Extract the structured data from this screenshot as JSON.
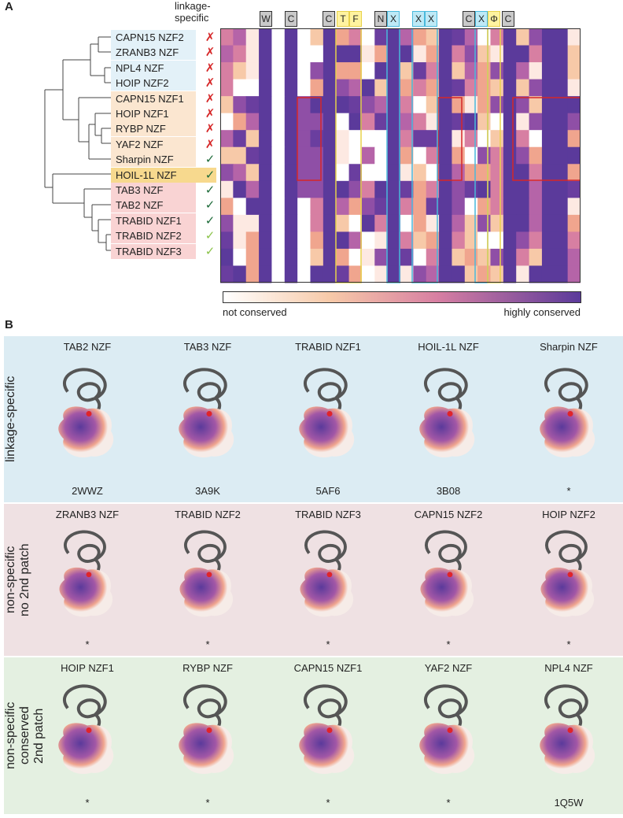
{
  "panel_a": {
    "letter": "A",
    "header": "linkage-\nspecific",
    "header_line1": "linkage-",
    "header_line2": "specific",
    "residue_markers": [
      "W",
      "C",
      "C",
      "T",
      "F",
      "N",
      "X",
      "X",
      "X",
      "C",
      "X",
      "Φ",
      "C"
    ],
    "rows": [
      {
        "name": "CAPN15 NZF2",
        "mark": "✗"
      },
      {
        "name": "ZRANB3 NZF",
        "mark": "✗"
      },
      {
        "name": "NPL4 NZF",
        "mark": "✗"
      },
      {
        "name": "HOIP NZF2",
        "mark": "✗"
      },
      {
        "name": "CAPN15 NZF1",
        "mark": "✗"
      },
      {
        "name": "HOIP NZF1",
        "mark": "✗"
      },
      {
        "name": "RYBP NZF",
        "mark": "✗"
      },
      {
        "name": "YAF2 NZF",
        "mark": "✗"
      },
      {
        "name": "Sharpin NZF",
        "mark": "✓"
      },
      {
        "name": "HOIL-1L NZF",
        "mark": "✓"
      },
      {
        "name": "TAB3 NZF",
        "mark": "✓"
      },
      {
        "name": "TAB2 NZF",
        "mark": "✓"
      },
      {
        "name": "TRABID NZF1",
        "mark": "✓"
      },
      {
        "name": "TRABID NZF2",
        "mark": "✓"
      },
      {
        "name": "TRABID NZF3",
        "mark": "✓"
      }
    ],
    "colorbar": {
      "low_label": "not conserved",
      "high_label": "highly conserved"
    },
    "colors": {
      "cross": "#d62728",
      "check_dark": "#1e6b3a",
      "check_light": "#8bc34a",
      "blue_row": "#e3f1f8",
      "orange_row": "#fbe6d0",
      "yellow_row": "#f7d98e",
      "pink_row": "#f9d3d3",
      "high": "#5b3a9b",
      "low": "#ffffff"
    }
  },
  "panel_b": {
    "letter": "B",
    "sections": [
      {
        "label": "linkage-specific",
        "bg": "#dcecf3",
        "items": [
          {
            "name": "TAB2 NZF",
            "code": "2WWZ"
          },
          {
            "name": "TAB3 NZF",
            "code": "3A9K"
          },
          {
            "name": "TRABID NZF1",
            "code": "5AF6"
          },
          {
            "name": "HOIL-1L NZF",
            "code": "3B08"
          },
          {
            "name": "Sharpin NZF",
            "code": "*"
          }
        ]
      },
      {
        "label": "non-specific no 2nd patch",
        "label_line1": "non-specific",
        "label_line2": "no 2nd patch",
        "bg": "#efe1e3",
        "items": [
          {
            "name": "ZRANB3 NZF",
            "code": "*"
          },
          {
            "name": "TRABID NZF2",
            "code": "*"
          },
          {
            "name": "TRABID NZF3",
            "code": "*"
          },
          {
            "name": "CAPN15 NZF2",
            "code": "*"
          },
          {
            "name": "HOIP NZF2",
            "code": "*"
          }
        ]
      },
      {
        "label": "non-specific conserved 2nd patch",
        "label_line1": "non-specific",
        "label_line2": "conserved",
        "label_line3": "2nd patch",
        "bg": "#e4f0e1",
        "items": [
          {
            "name": "HOIP NZF1",
            "code": "*"
          },
          {
            "name": "RYBP NZF",
            "code": "*"
          },
          {
            "name": "CAPN15 NZF1",
            "code": "*"
          },
          {
            "name": "YAF2 NZF",
            "code": "*"
          },
          {
            "name": "NPL4 NZF",
            "code": "1Q5W"
          }
        ]
      }
    ]
  }
}
